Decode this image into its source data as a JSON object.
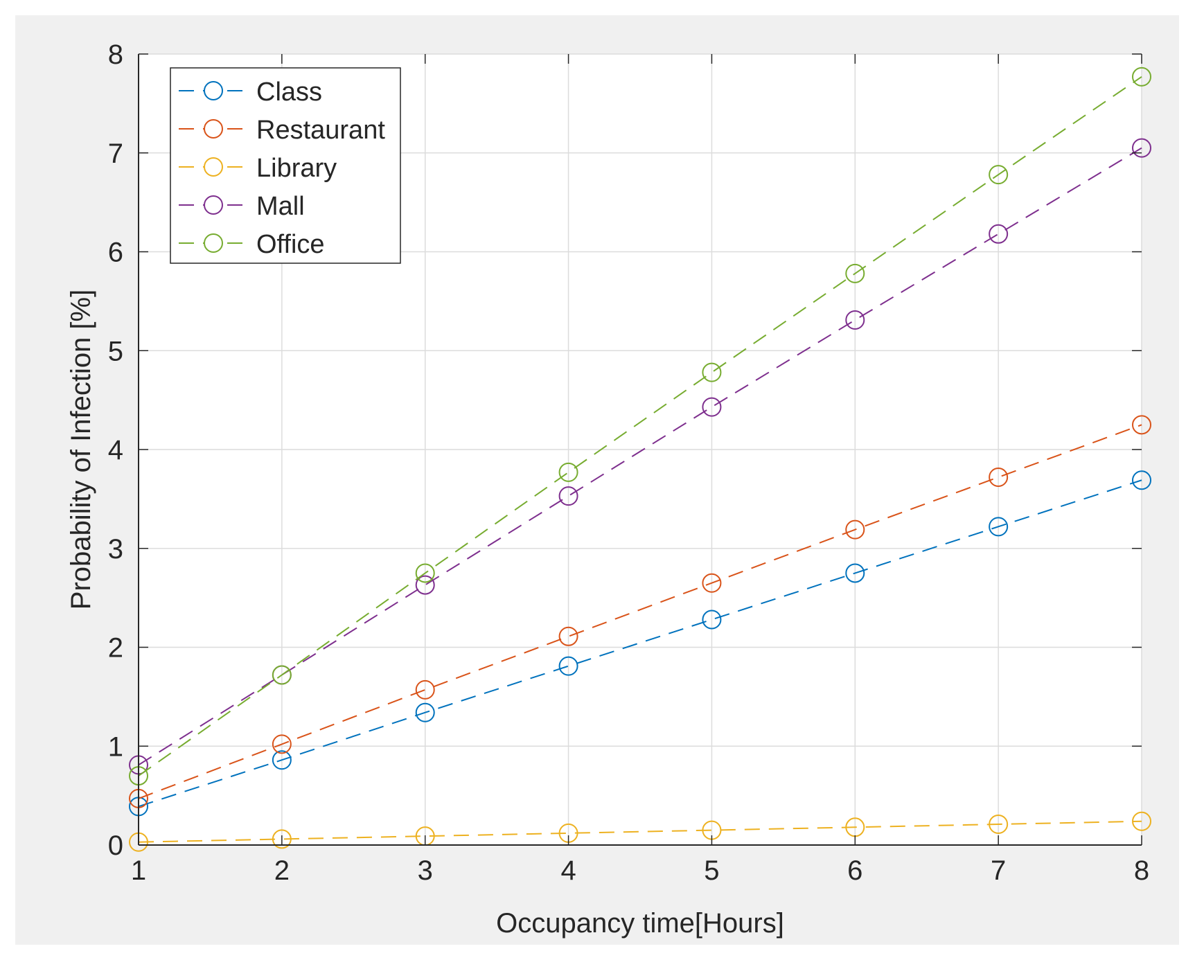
{
  "chart_data": {
    "type": "line",
    "title": "",
    "xlabel": "Occupancy time[Hours]",
    "ylabel": "Probability of Infection [%]",
    "xlim": [
      1,
      8
    ],
    "ylim": [
      0,
      8
    ],
    "x_ticks": [
      "1",
      "2",
      "3",
      "4",
      "5",
      "6",
      "7",
      "8"
    ],
    "y_ticks": [
      "0",
      "1",
      "2",
      "3",
      "4",
      "5",
      "6",
      "7",
      "8"
    ],
    "grid": true,
    "legend_position": "top-left",
    "x": [
      1,
      2,
      3,
      4,
      5,
      6,
      7,
      8
    ],
    "series": [
      {
        "name": "Class",
        "color": "#0072BD",
        "values": [
          0.39,
          0.86,
          1.34,
          1.81,
          2.28,
          2.75,
          3.22,
          3.69
        ]
      },
      {
        "name": "Restaurant",
        "color": "#D95319",
        "values": [
          0.47,
          1.02,
          1.57,
          2.11,
          2.65,
          3.19,
          3.72,
          4.25
        ]
      },
      {
        "name": "Library",
        "color": "#EDB120",
        "values": [
          0.03,
          0.06,
          0.09,
          0.12,
          0.15,
          0.18,
          0.21,
          0.24
        ]
      },
      {
        "name": "Mall",
        "color": "#7E2F8E",
        "values": [
          0.81,
          1.72,
          2.63,
          3.53,
          4.43,
          5.31,
          6.18,
          7.05
        ]
      },
      {
        "name": "Office",
        "color": "#77AC30",
        "values": [
          0.7,
          1.72,
          2.75,
          3.77,
          4.78,
          5.78,
          6.78,
          7.77
        ]
      }
    ]
  }
}
